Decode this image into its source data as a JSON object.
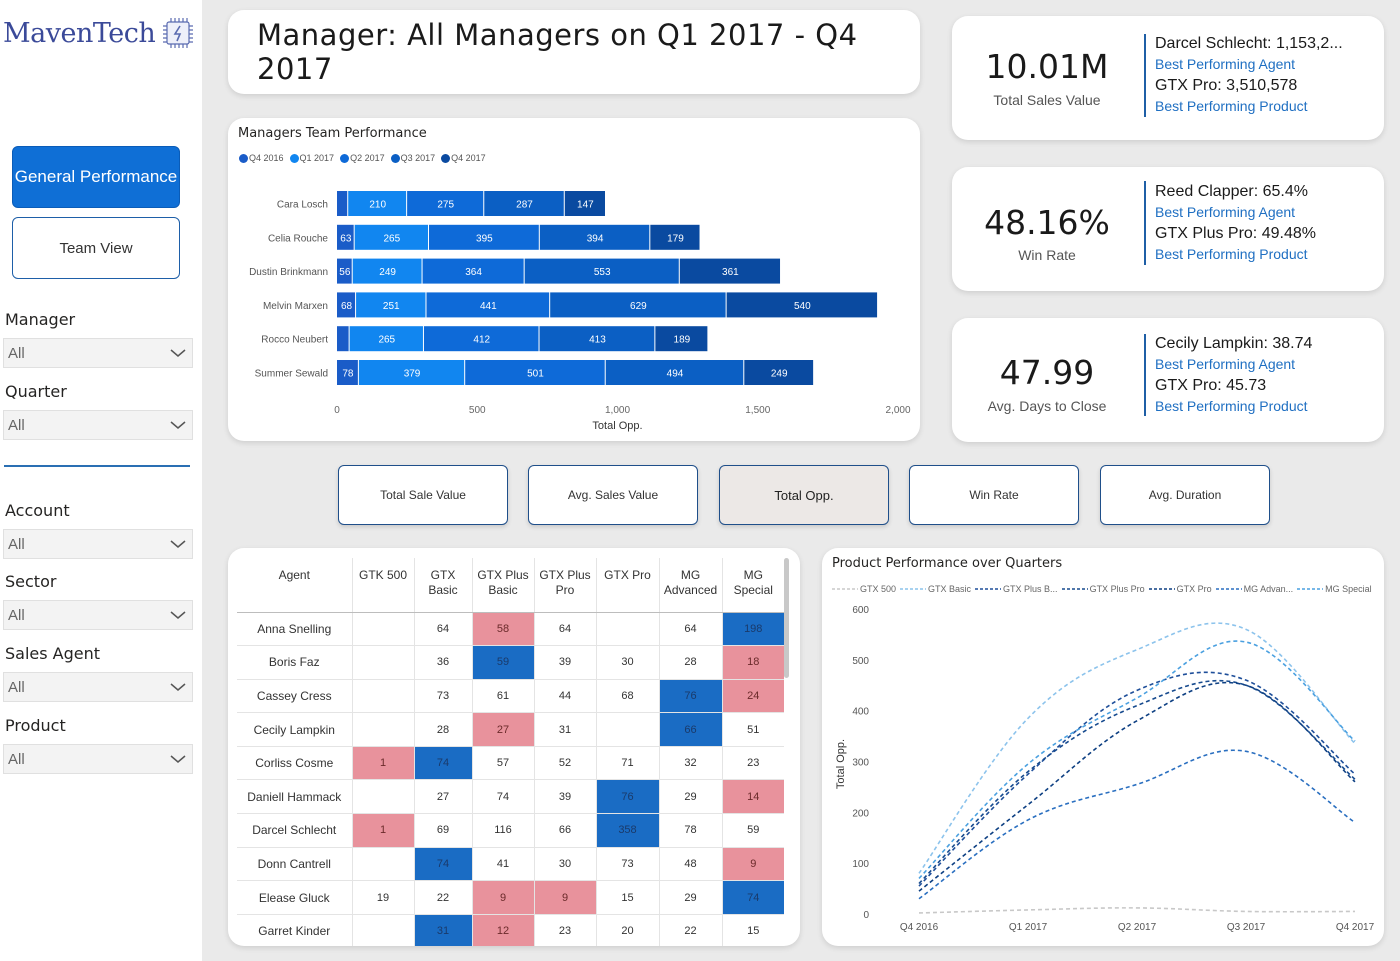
{
  "logo": {
    "text": "MavenTech"
  },
  "nav": {
    "general_performance": "General Performance",
    "team_view": "Team View"
  },
  "filters": [
    {
      "label": "Manager",
      "value": "All"
    },
    {
      "label": "Quarter",
      "value": "All"
    },
    {
      "label": "Account",
      "value": "All"
    },
    {
      "label": "Sector",
      "value": "All"
    },
    {
      "label": "Sales Agent",
      "value": "All"
    },
    {
      "label": "Product",
      "value": "All"
    }
  ],
  "header": {
    "title": "Manager: All Managers on Q1 2017 - Q4 2017"
  },
  "kpis": [
    {
      "value": "10.01M",
      "label": "Total Sales Value",
      "agent": "Darcel Schlecht: 1,153,2...",
      "agent_caption": "Best Performing Agent",
      "product": "GTX Pro: 3,510,578",
      "product_caption": "Best Performing Product"
    },
    {
      "value": "48.16%",
      "label": "Win Rate",
      "agent": "Reed Clapper: 65.4%",
      "agent_caption": "Best Performing Agent",
      "product": "GTX Plus Pro: 49.48%",
      "product_caption": "Best Performing Product"
    },
    {
      "value": "47.99",
      "label": "Avg. Days to Close",
      "agent": "Cecily Lampkin: 38.74",
      "agent_caption": "Best Performing Agent",
      "product": "GTX Pro: 45.73",
      "product_caption": "Best Performing Product"
    }
  ],
  "metric_buttons": [
    "Total Sale Value",
    "Avg. Sales Value",
    "Total Opp.",
    "Win Rate",
    "Avg. Duration"
  ],
  "colors": {
    "accent": "#0f6fd6",
    "q4_2016": "#1a5cc8",
    "q1_2017": "#1186f0",
    "q2_2017": "#0e6ad8",
    "q3_2017": "#0b5fc4",
    "q4_2017": "#0a4aa0",
    "high_cell": "#1a6cc4",
    "low_cell": "#e8929c"
  },
  "chart_data": [
    {
      "type": "bar",
      "orientation": "horizontal-stacked",
      "title": "Managers Team Performance",
      "xlabel": "Total Opp.",
      "xlim": [
        0,
        2000
      ],
      "xticks": [
        "0",
        "500",
        "1,000",
        "1,500",
        "2,000"
      ],
      "xtick_values": [
        0,
        500,
        1000,
        1500,
        2000
      ],
      "categories": [
        "Cara Losch",
        "Celia Rouche",
        "Dustin Brinkmann",
        "Melvin Marxen",
        "Rocco Neubert",
        "Summer Sewald"
      ],
      "series": [
        {
          "name": "Q4 2016",
          "values": [
            40,
            63,
            56,
            68,
            45,
            78
          ],
          "labels": [
            "",
            "63",
            "56",
            "68",
            "",
            "78"
          ]
        },
        {
          "name": "Q1 2017",
          "values": [
            210,
            265,
            249,
            251,
            265,
            379
          ],
          "labels": [
            "210",
            "265",
            "249",
            "251",
            "265",
            "379"
          ]
        },
        {
          "name": "Q2 2017",
          "values": [
            275,
            395,
            364,
            441,
            412,
            501
          ],
          "labels": [
            "275",
            "395",
            "364",
            "441",
            "412",
            "501"
          ]
        },
        {
          "name": "Q3 2017",
          "values": [
            287,
            394,
            553,
            629,
            413,
            494
          ],
          "labels": [
            "287",
            "394",
            "553",
            "629",
            "413",
            "494"
          ]
        },
        {
          "name": "Q4 2017",
          "values": [
            147,
            179,
            361,
            540,
            189,
            249
          ],
          "labels": [
            "147",
            "179",
            "361",
            "540",
            "189",
            "249"
          ]
        }
      ]
    },
    {
      "type": "line",
      "title": "Product Performance over Quarters",
      "ylabel": "Total Opp.",
      "ylim": [
        0,
        600
      ],
      "yticks": [
        0,
        100,
        200,
        300,
        400,
        500,
        600
      ],
      "x": [
        "Q4 2016",
        "Q1 2017",
        "Q2 2017",
        "Q3 2017",
        "Q4 2017"
      ],
      "series": [
        {
          "name": "GTX 500",
          "legend": "GTX 500",
          "values": [
            2,
            8,
            12,
            5,
            5
          ]
        },
        {
          "name": "GTX Basic",
          "legend": "GTX Basic",
          "values": [
            80,
            385,
            520,
            560,
            335
          ]
        },
        {
          "name": "GTX Plus Basic",
          "legend": "GTX Plus B...",
          "values": [
            55,
            275,
            440,
            460,
            275
          ]
        },
        {
          "name": "GTX Plus Pro",
          "legend": "GTX Plus Pro",
          "values": [
            60,
            280,
            410,
            450,
            265
          ]
        },
        {
          "name": "GTX Pro",
          "legend": "GTX Pro",
          "values": [
            45,
            215,
            380,
            450,
            260
          ]
        },
        {
          "name": "MG Advanced",
          "legend": "MG Advan...",
          "values": [
            30,
            185,
            255,
            320,
            180
          ]
        },
        {
          "name": "MG Special",
          "legend": "MG Special",
          "values": [
            70,
            295,
            425,
            535,
            340
          ]
        }
      ]
    }
  ],
  "matrix": {
    "headers": [
      "Agent",
      "GTK 500",
      "GTX Basic",
      "GTX Plus Basic",
      "GTX Plus Pro",
      "GTX Pro",
      "MG Advanced",
      "MG Special"
    ],
    "rows": [
      {
        "agent": "Anna Snelling",
        "cells": [
          "",
          "64",
          "58",
          "64",
          "",
          "64",
          "198"
        ],
        "styles": [
          "",
          "",
          "lo",
          "",
          "",
          "",
          "hi"
        ]
      },
      {
        "agent": "Boris Faz",
        "cells": [
          "",
          "36",
          "59",
          "39",
          "30",
          "28",
          "18"
        ],
        "styles": [
          "",
          "",
          "hi",
          "",
          "",
          "",
          "lo"
        ]
      },
      {
        "agent": "Cassey Cress",
        "cells": [
          "",
          "73",
          "61",
          "44",
          "68",
          "76",
          "24"
        ],
        "styles": [
          "",
          "",
          "",
          "",
          "",
          "hi",
          "lo"
        ]
      },
      {
        "agent": "Cecily Lampkin",
        "cells": [
          "",
          "28",
          "27",
          "31",
          "",
          "66",
          "51"
        ],
        "styles": [
          "",
          "",
          "lo",
          "",
          "",
          "hi",
          ""
        ]
      },
      {
        "agent": "Corliss Cosme",
        "cells": [
          "1",
          "74",
          "57",
          "52",
          "71",
          "32",
          "23"
        ],
        "styles": [
          "lo",
          "hi",
          "",
          "",
          "",
          "",
          ""
        ]
      },
      {
        "agent": "Daniell Hammack",
        "cells": [
          "",
          "27",
          "74",
          "39",
          "76",
          "29",
          "14"
        ],
        "styles": [
          "",
          "",
          "",
          "",
          "hi",
          "",
          "lo"
        ]
      },
      {
        "agent": "Darcel Schlecht",
        "cells": [
          "1",
          "69",
          "116",
          "66",
          "358",
          "78",
          "59"
        ],
        "styles": [
          "lo",
          "",
          "",
          "",
          "hi",
          "",
          ""
        ]
      },
      {
        "agent": "Donn Cantrell",
        "cells": [
          "",
          "74",
          "41",
          "30",
          "73",
          "48",
          "9"
        ],
        "styles": [
          "",
          "hi",
          "",
          "",
          "",
          "",
          "lo"
        ]
      },
      {
        "agent": "Elease Gluck",
        "cells": [
          "19",
          "22",
          "9",
          "9",
          "15",
          "29",
          "74"
        ],
        "styles": [
          "",
          "",
          "lo",
          "lo",
          "",
          "",
          "hi"
        ]
      },
      {
        "agent": "Garret Kinder",
        "cells": [
          "",
          "31",
          "12",
          "23",
          "20",
          "22",
          "15"
        ],
        "styles": [
          "",
          "hi",
          "lo",
          "",
          "",
          "",
          ""
        ]
      }
    ]
  }
}
